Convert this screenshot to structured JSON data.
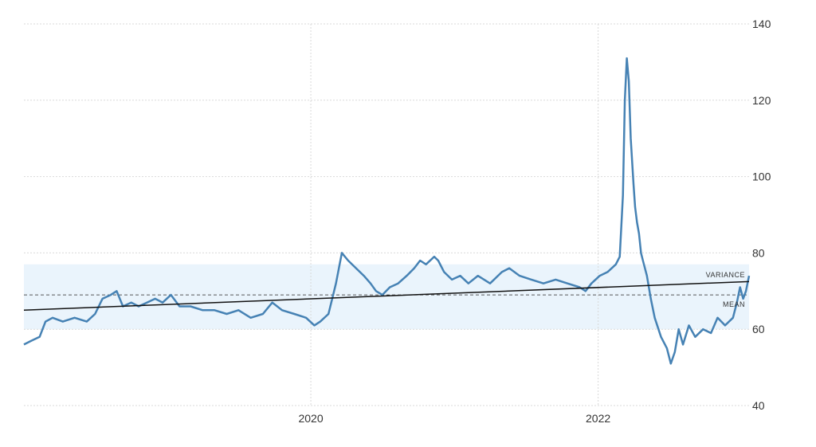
{
  "chart_data": {
    "type": "line",
    "title": "",
    "xlabel": "",
    "ylabel": "",
    "x_ticks": [
      {
        "x": "2020-01-01",
        "label": "2020"
      },
      {
        "x": "2022-01-01",
        "label": "2022"
      }
    ],
    "y_ticks": [
      40,
      60,
      80,
      100,
      120,
      140
    ],
    "ylim": [
      40,
      140
    ],
    "xlim": [
      "2018-01-01",
      "2023-01-20"
    ],
    "grid": true,
    "y_axis_side": "right",
    "band": {
      "from": 60,
      "to": 77,
      "color": "#eaf4fc"
    },
    "mean": {
      "value": 69,
      "label": "MEAN"
    },
    "variance_label": "VARIANCE",
    "trend": {
      "start": {
        "x": "2018-01-01",
        "y": 65
      },
      "end": {
        "x": "2023-01-20",
        "y": 72.5
      }
    },
    "series": [
      {
        "color": "#4682b4",
        "points": [
          [
            "2018-01-01",
            56
          ],
          [
            "2018-01-20",
            57
          ],
          [
            "2018-02-10",
            58
          ],
          [
            "2018-02-25",
            62
          ],
          [
            "2018-03-15",
            63
          ],
          [
            "2018-04-10",
            62
          ],
          [
            "2018-05-10",
            63
          ],
          [
            "2018-06-10",
            62
          ],
          [
            "2018-07-01",
            64
          ],
          [
            "2018-07-20",
            68
          ],
          [
            "2018-08-10",
            69
          ],
          [
            "2018-08-25",
            70
          ],
          [
            "2018-09-10",
            66
          ],
          [
            "2018-10-01",
            67
          ],
          [
            "2018-10-20",
            66
          ],
          [
            "2018-11-10",
            67
          ],
          [
            "2018-12-01",
            68
          ],
          [
            "2018-12-20",
            67
          ],
          [
            "2019-01-10",
            69
          ],
          [
            "2019-02-01",
            66
          ],
          [
            "2019-03-01",
            66
          ],
          [
            "2019-04-01",
            65
          ],
          [
            "2019-05-01",
            65
          ],
          [
            "2019-06-01",
            64
          ],
          [
            "2019-07-01",
            65
          ],
          [
            "2019-08-01",
            63
          ],
          [
            "2019-09-01",
            64
          ],
          [
            "2019-09-25",
            67
          ],
          [
            "2019-10-20",
            65
          ],
          [
            "2019-11-20",
            64
          ],
          [
            "2019-12-20",
            63
          ],
          [
            "2020-01-10",
            61
          ],
          [
            "2020-01-25",
            62
          ],
          [
            "2020-02-15",
            64
          ],
          [
            "2020-03-05",
            72
          ],
          [
            "2020-03-20",
            80
          ],
          [
            "2020-04-05",
            78
          ],
          [
            "2020-04-25",
            76
          ],
          [
            "2020-05-15",
            74
          ],
          [
            "2020-06-01",
            72
          ],
          [
            "2020-06-15",
            70
          ],
          [
            "2020-07-01",
            69
          ],
          [
            "2020-07-20",
            71
          ],
          [
            "2020-08-10",
            72
          ],
          [
            "2020-09-01",
            74
          ],
          [
            "2020-09-20",
            76
          ],
          [
            "2020-10-05",
            78
          ],
          [
            "2020-10-20",
            77
          ],
          [
            "2020-11-10",
            79
          ],
          [
            "2020-11-20",
            78
          ],
          [
            "2020-12-05",
            75
          ],
          [
            "2020-12-25",
            73
          ],
          [
            "2021-01-15",
            74
          ],
          [
            "2021-02-05",
            72
          ],
          [
            "2021-03-01",
            74
          ],
          [
            "2021-04-01",
            72
          ],
          [
            "2021-05-01",
            75
          ],
          [
            "2021-05-20",
            76
          ],
          [
            "2021-06-15",
            74
          ],
          [
            "2021-07-15",
            73
          ],
          [
            "2021-08-15",
            72
          ],
          [
            "2021-09-15",
            73
          ],
          [
            "2021-10-15",
            72
          ],
          [
            "2021-11-15",
            71
          ],
          [
            "2021-11-30",
            70
          ],
          [
            "2021-12-15",
            72
          ],
          [
            "2022-01-05",
            74
          ],
          [
            "2022-01-25",
            75
          ],
          [
            "2022-02-15",
            77
          ],
          [
            "2022-02-25",
            79
          ],
          [
            "2022-03-05",
            95
          ],
          [
            "2022-03-10",
            120
          ],
          [
            "2022-03-15",
            131
          ],
          [
            "2022-03-20",
            125
          ],
          [
            "2022-03-25",
            110
          ],
          [
            "2022-04-01",
            98
          ],
          [
            "2022-04-05",
            92
          ],
          [
            "2022-04-10",
            88
          ],
          [
            "2022-04-15",
            85
          ],
          [
            "2022-04-20",
            80
          ],
          [
            "2022-04-25",
            78
          ],
          [
            "2022-05-05",
            74
          ],
          [
            "2022-05-15",
            68
          ],
          [
            "2022-05-25",
            63
          ],
          [
            "2022-06-10",
            58
          ],
          [
            "2022-06-25",
            55
          ],
          [
            "2022-07-05",
            51
          ],
          [
            "2022-07-15",
            54
          ],
          [
            "2022-07-25",
            60
          ],
          [
            "2022-08-05",
            56
          ],
          [
            "2022-08-20",
            61
          ],
          [
            "2022-09-05",
            58
          ],
          [
            "2022-09-25",
            60
          ],
          [
            "2022-10-15",
            59
          ],
          [
            "2022-11-01",
            63
          ],
          [
            "2022-11-20",
            61
          ],
          [
            "2022-12-10",
            63
          ],
          [
            "2022-12-20",
            67
          ],
          [
            "2022-12-28",
            71
          ],
          [
            "2023-01-05",
            68
          ],
          [
            "2023-01-12",
            70
          ],
          [
            "2023-01-20",
            74
          ]
        ]
      }
    ]
  }
}
